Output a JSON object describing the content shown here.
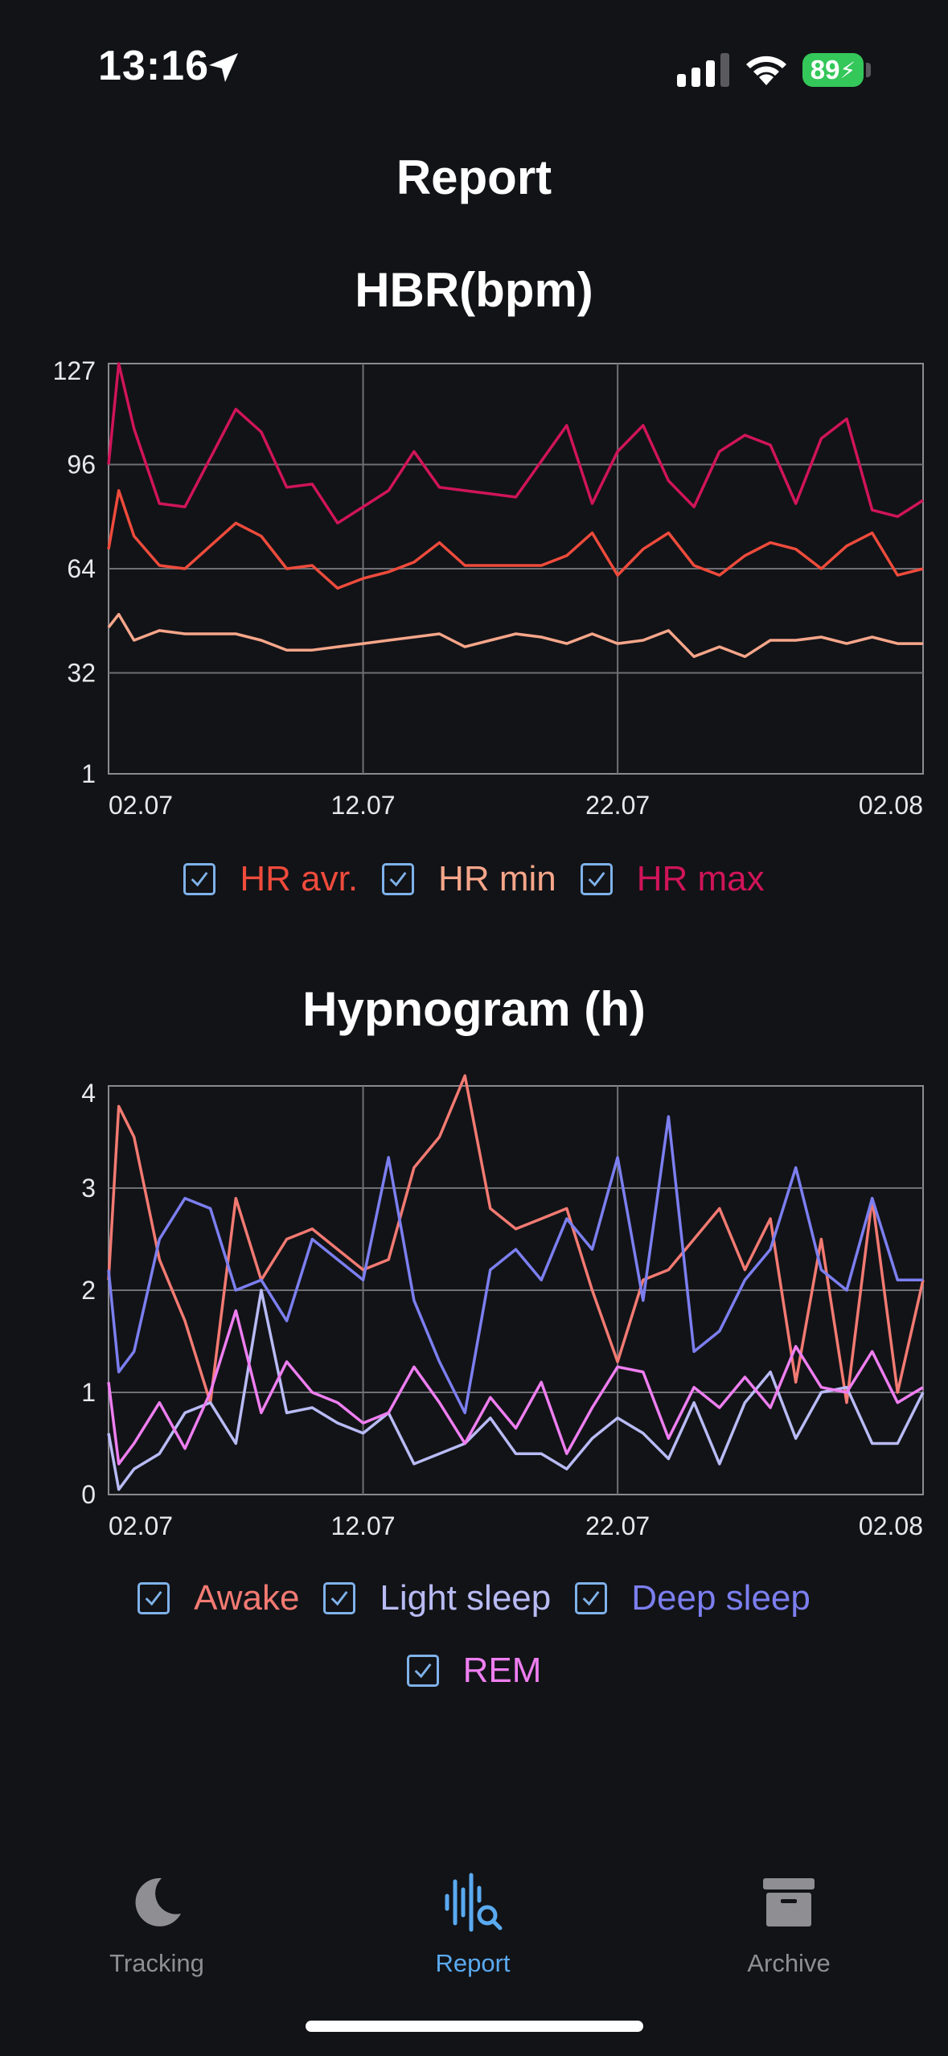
{
  "status_bar": {
    "time": "13:16",
    "battery": "89"
  },
  "page": {
    "title": "Report"
  },
  "colors": {
    "background": "#121317",
    "hr_avr": "#ef4b3c",
    "hr_min": "#f7a68a",
    "hr_max": "#d0145a",
    "awake": "#f37a72",
    "light_sleep": "#b9bbf5",
    "deep_sleep": "#7c7ff0",
    "rem": "#ee7ef0",
    "checkbox": "#7fb2ea",
    "tab_active": "#5aaaf0",
    "tab_inactive": "#8e8e93"
  },
  "charts": {
    "hr": {
      "title": "HBR(bpm)",
      "legend": [
        "HR avr.",
        "HR min",
        "HR max"
      ]
    },
    "hypnogram": {
      "title": "Hypnogram (h)",
      "legend": [
        "Awake",
        "Light sleep",
        "Deep sleep",
        "REM"
      ]
    }
  },
  "chart_data": [
    {
      "type": "line",
      "title": "HBR(bpm)",
      "x_tick_labels": [
        "02.07",
        "12.07",
        "22.07",
        "02.08"
      ],
      "y_tick_labels": [
        "127",
        "96",
        "64",
        "32",
        "1"
      ],
      "ylim": [
        1,
        127
      ],
      "xlim": [
        1,
        33
      ],
      "grid": true,
      "legend_position": "bottom",
      "series": [
        {
          "name": "HR avr.",
          "x": [
            1,
            1.4,
            2,
            3,
            4,
            5,
            6,
            7,
            8,
            9,
            10,
            11,
            12,
            13,
            14,
            15,
            16,
            17,
            18,
            19,
            20,
            21,
            22,
            23,
            24,
            25,
            26,
            27,
            28,
            29,
            30,
            31,
            32,
            33
          ],
          "y": [
            70,
            88,
            74,
            65,
            64,
            71,
            78,
            74,
            64,
            65,
            58,
            61,
            63,
            66,
            72,
            65,
            65,
            65,
            65,
            68,
            75,
            62,
            70,
            75,
            65,
            62,
            68,
            72,
            70,
            64,
            71,
            75,
            62,
            64
          ]
        },
        {
          "name": "HR min",
          "x": [
            1,
            1.4,
            2,
            3,
            4,
            5,
            6,
            7,
            8,
            9,
            10,
            11,
            12,
            13,
            14,
            15,
            16,
            17,
            18,
            19,
            20,
            21,
            22,
            23,
            24,
            25,
            26,
            27,
            28,
            29,
            30,
            31,
            32,
            33
          ],
          "y": [
            46,
            50,
            42,
            45,
            44,
            44,
            44,
            42,
            39,
            39,
            40,
            41,
            42,
            43,
            44,
            40,
            42,
            44,
            43,
            41,
            44,
            41,
            42,
            45,
            37,
            40,
            37,
            42,
            42,
            43,
            41,
            43,
            41,
            41
          ]
        },
        {
          "name": "HR max",
          "x": [
            1,
            1.4,
            2,
            3,
            4,
            5,
            6,
            7,
            8,
            9,
            10,
            11,
            12,
            13,
            14,
            15,
            16,
            17,
            18,
            19,
            20,
            21,
            22,
            23,
            24,
            25,
            26,
            27,
            28,
            29,
            30,
            31,
            32,
            33
          ],
          "y": [
            96,
            127,
            107,
            84,
            83,
            98,
            113,
            106,
            89,
            90,
            78,
            83,
            88,
            100,
            89,
            88,
            87,
            86,
            97,
            108,
            84,
            100,
            108,
            91,
            83,
            100,
            105,
            102,
            84,
            104,
            110,
            82,
            80,
            85
          ]
        }
      ]
    },
    {
      "type": "line",
      "title": "Hypnogram (h)",
      "x_tick_labels": [
        "02.07",
        "12.07",
        "22.07",
        "02.08"
      ],
      "y_tick_labels": [
        "4",
        "3",
        "2",
        "1",
        "0"
      ],
      "ylim": [
        0,
        4
      ],
      "xlim": [
        1,
        33
      ],
      "grid": true,
      "legend_position": "bottom",
      "series": [
        {
          "name": "Awake",
          "x": [
            1,
            1.4,
            2,
            3,
            4,
            5,
            6,
            7,
            8,
            9,
            10,
            11,
            12,
            13,
            14,
            15,
            16,
            17,
            18,
            19,
            20,
            21,
            22,
            23,
            24,
            25,
            26,
            27,
            28,
            29,
            30,
            31,
            32,
            33
          ],
          "y": [
            2.1,
            3.8,
            3.5,
            2.3,
            1.7,
            0.9,
            2.9,
            2.1,
            2.5,
            2.6,
            2.4,
            2.2,
            2.3,
            3.2,
            3.5,
            4.1,
            2.8,
            2.6,
            2.7,
            2.8,
            2.0,
            1.3,
            2.1,
            2.2,
            2.5,
            2.8,
            2.2,
            2.7,
            1.1,
            2.5,
            0.9,
            2.9,
            1.0,
            2.1
          ]
        },
        {
          "name": "Light sleep",
          "x": [
            1,
            1.4,
            2,
            3,
            4,
            5,
            6,
            7,
            8,
            9,
            10,
            11,
            12,
            13,
            14,
            15,
            16,
            17,
            18,
            19,
            20,
            21,
            22,
            23,
            24,
            25,
            26,
            27,
            28,
            29,
            30,
            31,
            32,
            33
          ],
          "y": [
            0.6,
            0.05,
            0.25,
            0.4,
            0.8,
            0.9,
            0.5,
            2.0,
            0.8,
            0.85,
            0.7,
            0.6,
            0.8,
            0.3,
            0.4,
            0.5,
            0.75,
            0.4,
            0.4,
            0.25,
            0.55,
            0.75,
            0.6,
            0.35,
            0.9,
            0.3,
            0.9,
            1.2,
            0.55,
            1.0,
            1.05,
            0.5,
            0.5,
            1.0
          ]
        },
        {
          "name": "Deep sleep",
          "x": [
            1,
            1.4,
            2,
            3,
            4,
            5,
            6,
            7,
            8,
            9,
            10,
            11,
            12,
            13,
            14,
            15,
            16,
            17,
            18,
            19,
            20,
            21,
            22,
            23,
            24,
            25,
            26,
            27,
            28,
            29,
            30,
            31,
            32,
            33
          ],
          "y": [
            2.2,
            1.2,
            1.4,
            2.5,
            2.9,
            2.8,
            2.0,
            2.1,
            1.7,
            2.5,
            2.3,
            2.1,
            3.3,
            1.9,
            1.3,
            0.8,
            2.2,
            2.4,
            2.1,
            2.7,
            2.4,
            3.3,
            1.9,
            3.7,
            1.4,
            1.6,
            2.1,
            2.4,
            3.2,
            2.2,
            2.0,
            2.9,
            2.1,
            2.1
          ]
        },
        {
          "name": "REM",
          "x": [
            1,
            1.4,
            2,
            3,
            4,
            5,
            6,
            7,
            8,
            9,
            10,
            11,
            12,
            13,
            14,
            15,
            16,
            17,
            18,
            19,
            20,
            21,
            22,
            23,
            24,
            25,
            26,
            27,
            28,
            29,
            30,
            31,
            32,
            33
          ],
          "y": [
            1.1,
            0.3,
            0.5,
            0.9,
            0.45,
            1.0,
            1.8,
            0.8,
            1.3,
            1.0,
            0.9,
            0.7,
            0.8,
            1.25,
            0.9,
            0.5,
            0.95,
            0.65,
            1.1,
            0.4,
            0.85,
            1.25,
            1.2,
            0.55,
            1.05,
            0.85,
            1.15,
            0.85,
            1.45,
            1.05,
            1.0,
            1.4,
            0.9,
            1.05
          ]
        }
      ]
    }
  ],
  "tabs": [
    {
      "label": "Tracking",
      "icon": "moon-icon",
      "active": false
    },
    {
      "label": "Report",
      "icon": "waveform-search-icon",
      "active": true
    },
    {
      "label": "Archive",
      "icon": "archive-box-icon",
      "active": false
    }
  ]
}
